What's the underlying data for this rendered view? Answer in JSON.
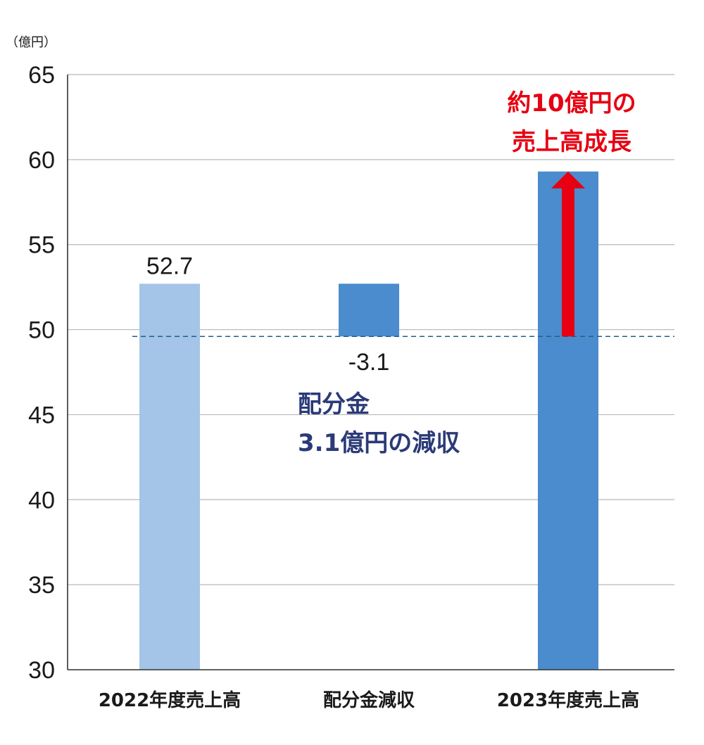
{
  "chart_data": {
    "type": "bar",
    "unit": "（億円）",
    "categories": [
      "2022年度売上高",
      "配分金減収",
      "2023年度売上高"
    ],
    "values": [
      52.7,
      -3.1,
      59.3
    ],
    "value_labels": [
      "52.7",
      "-3.1",
      ""
    ],
    "bars": [
      {
        "category": "2022年度売上高",
        "low": 30,
        "high": 52.7,
        "color": "#a4c4e8"
      },
      {
        "category": "配分金減収",
        "low": 49.6,
        "high": 52.7,
        "color": "#4a8ccd"
      },
      {
        "category": "2023年度売上高",
        "low": 30,
        "high": 59.3,
        "color": "#4a8ccd"
      }
    ],
    "ylim": [
      30,
      65
    ],
    "yticks": [
      "30",
      "35",
      "40",
      "45",
      "50",
      "55",
      "60",
      "65"
    ],
    "grid": true,
    "reference_line": {
      "value": 49.6,
      "style": "dashed",
      "color": "#1f5f8a"
    },
    "arrow": {
      "category": "2023年度売上高",
      "from": 49.6,
      "to": 59.3,
      "color": "#e60012"
    },
    "annotations": {
      "decrease_note": [
        "配分金",
        "3.1億円の減収"
      ],
      "increase_note": [
        "約10億円の",
        "売上高成長"
      ]
    },
    "colors": {
      "grid": "#b8b8b8",
      "axis": "#333333",
      "text": "#1a1a1a",
      "decrease_note": "#2b3a78",
      "increase_note": "#e60012"
    }
  }
}
